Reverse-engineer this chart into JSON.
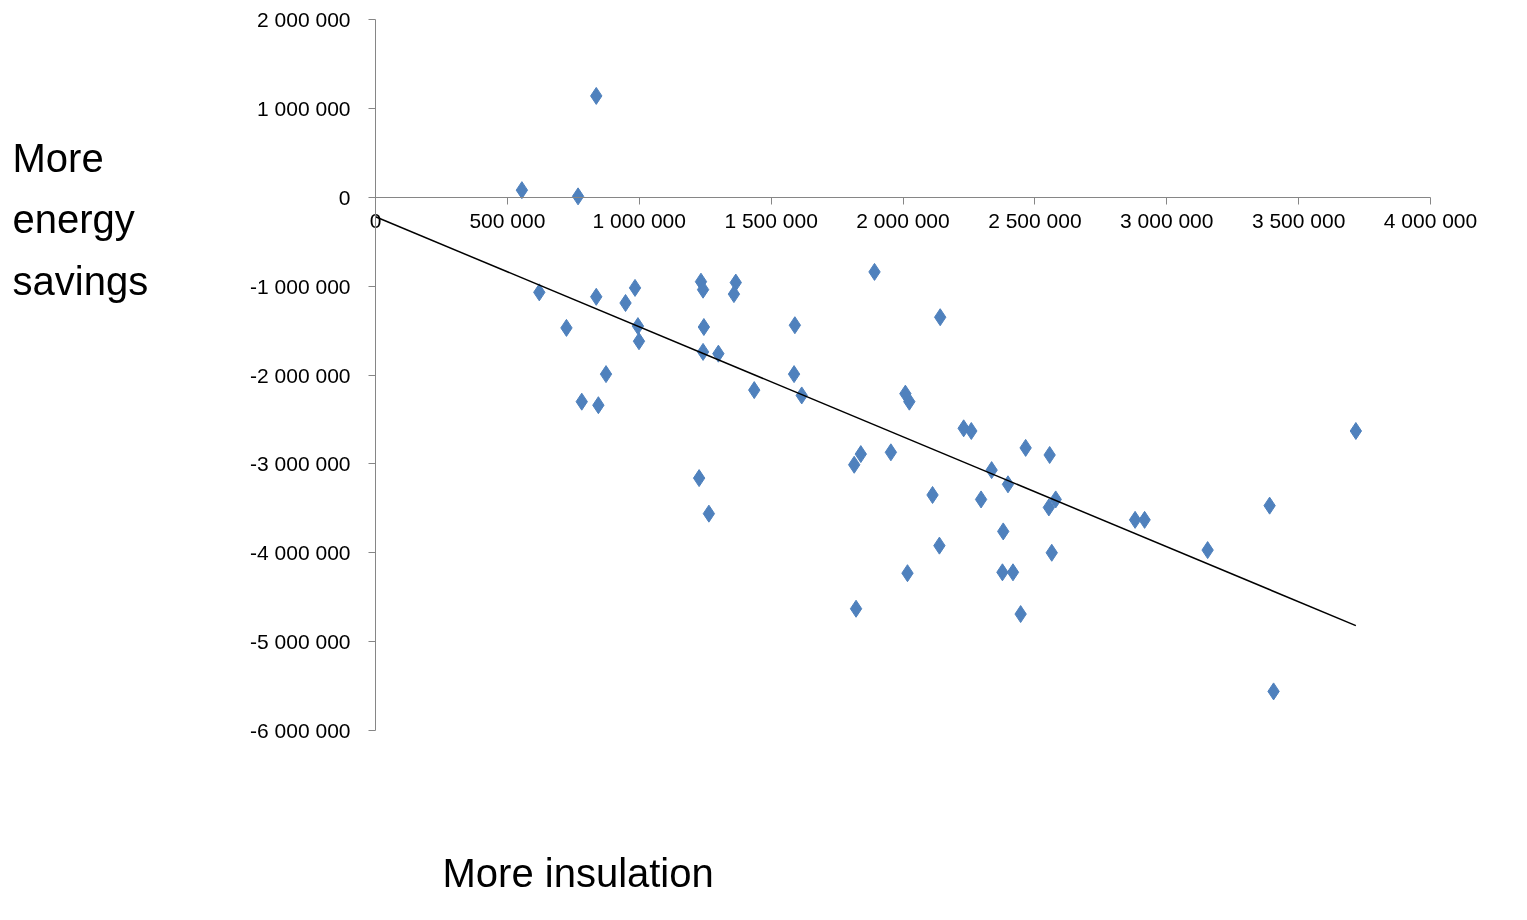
{
  "chart_data": {
    "type": "scatter",
    "xlim": [
      0,
      4000000
    ],
    "ylim": [
      -6000000,
      2000000
    ],
    "xticks": [
      0,
      {
        "value": 500000,
        "label": "500 000"
      },
      {
        "value": 1000000,
        "label": "1 000 000"
      },
      {
        "value": 1500000,
        "label": "1 500 000"
      },
      {
        "value": 2000000,
        "label": "2 000 000"
      },
      {
        "value": 2500000,
        "label": "2 500 000"
      },
      {
        "value": 3000000,
        "label": "3 000 000"
      },
      {
        "value": 3500000,
        "label": "3 500 000"
      },
      {
        "value": 4000000,
        "label": "4 000 000"
      }
    ],
    "yticks": [
      {
        "value": -6000000,
        "label": "-6 000 000"
      },
      {
        "value": -5000000,
        "label": "-5 000 000"
      },
      {
        "value": -4000000,
        "label": "-4 000 000"
      },
      {
        "value": -3000000,
        "label": "-3 000 000"
      },
      {
        "value": -2000000,
        "label": "-2 000 000"
      },
      {
        "value": -1000000,
        "label": "-1 000 000"
      },
      0,
      {
        "value": 1000000,
        "label": "1 000 000"
      },
      {
        "value": 2000000,
        "label": "2 000 000"
      }
    ],
    "annotations": [
      "More energy savings",
      "More insulation"
    ],
    "series": [
      {
        "marker": "diamond",
        "color": "#4f81bd",
        "x": [
          555000,
          837000,
          768000,
          621000,
          724000,
          782000,
          845000,
          837000,
          874000,
          948000,
          984000,
          995000,
          999000,
          1234000,
          1242000,
          1245000,
          1242000,
          1300000,
          1366000,
          1359000,
          1227000,
          1264000,
          1436000,
          1590000,
          1587000,
          1616000,
          1892000,
          2141000,
          2009000,
          2024000,
          1840000,
          1815000,
          1954000,
          1822000,
          2017000,
          2112000,
          2138000,
          2230000,
          2259000,
          2336000,
          2398000,
          2296000,
          2380000,
          2377000,
          2417000,
          2465000,
          2446000,
          2556000,
          2553000,
          2579000,
          2564000,
          2880000,
          2916000,
          3155000,
          3390000,
          3405000,
          3717000
        ],
        "values": [
          80000,
          1140000,
          10000,
          -1070000,
          -1470000,
          -2300000,
          -2340000,
          -1120000,
          -1990000,
          -1190000,
          -1020000,
          -1450000,
          -1620000,
          -950000,
          -1040000,
          -1460000,
          -1740000,
          -1760000,
          -960000,
          -1090000,
          -3160000,
          -3560000,
          -2170000,
          -1440000,
          -1990000,
          -2230000,
          -840000,
          -1350000,
          -2210000,
          -2300000,
          -2890000,
          -3010000,
          -2870000,
          -4630000,
          -4230000,
          -3350000,
          -3920000,
          -2600000,
          -2630000,
          -3070000,
          -3230000,
          -3400000,
          -3760000,
          -4220000,
          -4220000,
          -2820000,
          -4690000,
          -2900000,
          -3490000,
          -3400000,
          -4000000,
          -3630000,
          -3630000,
          -3970000,
          -3470000,
          -5560000,
          -2630000
        ]
      },
      {
        "type": "line",
        "color": "#000000",
        "x": [
          0,
          3717000
        ],
        "values": [
          -220000,
          -4820000
        ]
      }
    ]
  }
}
